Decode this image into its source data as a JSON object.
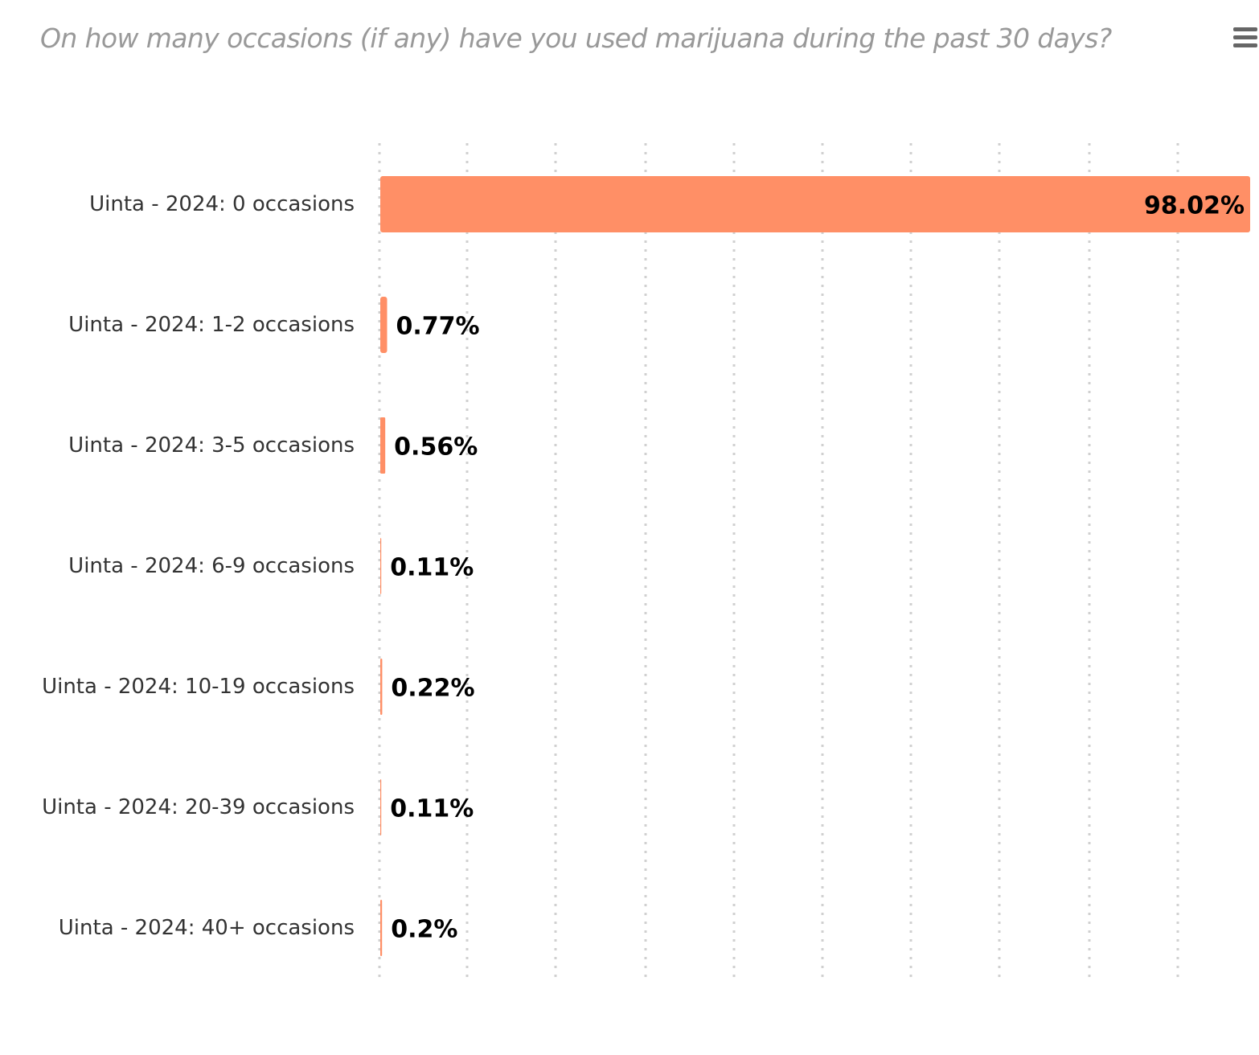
{
  "chart_data": {
    "type": "bar",
    "orientation": "horizontal",
    "title": "On how many occasions (if any) have you used marijuana during the past 30 days?",
    "categories": [
      "Uinta - 2024: 0 occasions",
      "Uinta - 2024: 1-2 occasions",
      "Uinta - 2024: 3-5 occasions",
      "Uinta - 2024: 6-9 occasions",
      "Uinta - 2024: 10-19 occasions",
      "Uinta - 2024: 20-39 occasions",
      "Uinta - 2024: 40+ occasions"
    ],
    "values": [
      98.02,
      0.77,
      0.56,
      0.11,
      0.22,
      0.11,
      0.2
    ],
    "data_labels": [
      "98.02%",
      "0.77%",
      "0.56%",
      "0.11%",
      "0.22%",
      "0.11%",
      "0.2%"
    ],
    "xlim": [
      0,
      98.02
    ],
    "grid": true,
    "grid_style": "dotted vertical",
    "bar_color": "#ff8f66"
  },
  "menu": {
    "icon": "hamburger-menu-icon"
  }
}
